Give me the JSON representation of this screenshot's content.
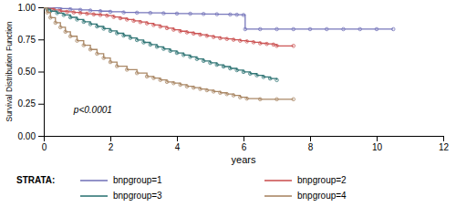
{
  "chart_data": {
    "type": "step",
    "xlabel": "years",
    "ylabel": "Survival Distribution Function",
    "xlim": [
      0,
      12
    ],
    "ylim": [
      0.0,
      1.0
    ],
    "xticks": [
      0,
      2,
      4,
      6,
      8,
      10,
      12
    ],
    "yticks": [
      {
        "value": 0.0,
        "label": "0.00"
      },
      {
        "value": 0.25,
        "label": "0.25"
      },
      {
        "value": 0.5,
        "label": "0.50"
      },
      {
        "value": 0.75,
        "label": "0.75"
      },
      {
        "value": 1.0,
        "label": "1.00"
      }
    ],
    "grid": false,
    "legend": "bottom",
    "legend_title": "STRATA:",
    "marker": "circle",
    "annotations": [
      {
        "text": "p<0.0001",
        "x": 0.9,
        "y": 0.175
      }
    ],
    "series": [
      {
        "name": "bnpgroup=1",
        "color": "#7777bb",
        "x": [
          0,
          0.15,
          0.3,
          0.5,
          0.8,
          1.1,
          1.4,
          1.7,
          2.0,
          2.4,
          2.8,
          3.2,
          3.6,
          4.0,
          4.4,
          4.8,
          5.2,
          5.6,
          5.8,
          6.0,
          6.05,
          6.5,
          7.0,
          7.5,
          8.0,
          8.5,
          9.0,
          9.5,
          10.0,
          10.5
        ],
        "values": [
          1.0,
          1.0,
          0.995,
          0.99,
          0.985,
          0.98,
          0.975,
          0.97,
          0.965,
          0.96,
          0.958,
          0.956,
          0.953,
          0.951,
          0.95,
          0.948,
          0.946,
          0.944,
          0.942,
          0.94,
          0.83,
          0.83,
          0.83,
          0.83,
          0.83,
          0.83,
          0.83,
          0.83,
          0.83,
          0.83
        ]
      },
      {
        "name": "bnpgroup=2",
        "color": "#cc5555",
        "x": [
          0,
          0.1,
          0.3,
          0.5,
          0.7,
          0.9,
          1.1,
          1.3,
          1.5,
          1.7,
          1.9,
          2.1,
          2.3,
          2.5,
          2.7,
          2.9,
          3.1,
          3.3,
          3.5,
          3.7,
          3.9,
          4.1,
          4.3,
          4.5,
          4.7,
          4.9,
          5.1,
          5.3,
          5.5,
          5.7,
          5.9,
          6.1,
          6.3,
          6.5,
          6.7,
          6.9,
          7.0,
          7.5
        ],
        "values": [
          1.0,
          0.99,
          0.98,
          0.97,
          0.965,
          0.96,
          0.955,
          0.95,
          0.945,
          0.94,
          0.935,
          0.925,
          0.915,
          0.905,
          0.895,
          0.885,
          0.875,
          0.862,
          0.85,
          0.838,
          0.826,
          0.814,
          0.805,
          0.796,
          0.787,
          0.778,
          0.769,
          0.76,
          0.754,
          0.748,
          0.74,
          0.735,
          0.728,
          0.72,
          0.715,
          0.71,
          0.7,
          0.7
        ]
      },
      {
        "name": "bnpgroup=3",
        "color": "#337777",
        "x": [
          0,
          0.1,
          0.2,
          0.4,
          0.6,
          0.8,
          1.0,
          1.2,
          1.4,
          1.6,
          1.8,
          2.0,
          2.2,
          2.4,
          2.6,
          2.8,
          3.0,
          3.2,
          3.4,
          3.6,
          3.8,
          4.0,
          4.2,
          4.4,
          4.6,
          4.8,
          5.0,
          5.2,
          5.4,
          5.6,
          5.8,
          6.0,
          6.2,
          6.4,
          6.6,
          6.8,
          7.0
        ],
        "values": [
          1.0,
          0.985,
          0.97,
          0.955,
          0.94,
          0.922,
          0.905,
          0.887,
          0.869,
          0.851,
          0.834,
          0.816,
          0.798,
          0.78,
          0.762,
          0.745,
          0.727,
          0.71,
          0.693,
          0.677,
          0.661,
          0.645,
          0.629,
          0.614,
          0.598,
          0.583,
          0.568,
          0.553,
          0.539,
          0.525,
          0.511,
          0.497,
          0.484,
          0.471,
          0.458,
          0.446,
          0.434
        ]
      },
      {
        "name": "bnpgroup=4",
        "color": "#aa8866",
        "x": [
          0,
          0.1,
          0.2,
          0.35,
          0.5,
          0.65,
          0.8,
          1.0,
          1.2,
          1.4,
          1.6,
          1.8,
          2.0,
          2.2,
          2.5,
          2.8,
          3.1,
          3.3,
          3.5,
          3.7,
          3.9,
          4.1,
          4.3,
          4.5,
          4.7,
          4.9,
          5.1,
          5.3,
          5.5,
          5.7,
          5.9,
          6.1,
          6.5,
          7.0,
          7.5
        ],
        "values": [
          1.0,
          0.96,
          0.92,
          0.88,
          0.845,
          0.81,
          0.775,
          0.74,
          0.705,
          0.672,
          0.639,
          0.606,
          0.574,
          0.542,
          0.515,
          0.488,
          0.462,
          0.45,
          0.435,
          0.42,
          0.41,
          0.398,
          0.385,
          0.375,
          0.365,
          0.355,
          0.345,
          0.335,
          0.325,
          0.315,
          0.3,
          0.29,
          0.285,
          0.285,
          0.285
        ]
      }
    ]
  }
}
